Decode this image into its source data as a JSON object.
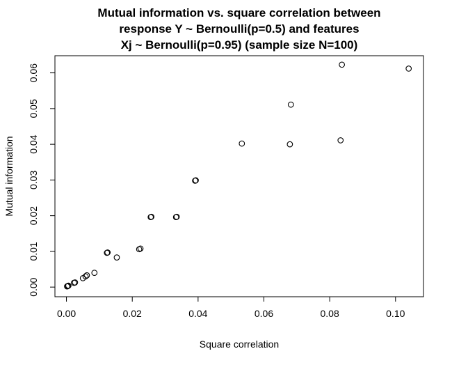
{
  "chart_data": {
    "type": "scatter",
    "title_lines": [
      "Mutual information vs. square correlation between",
      "response Y ~ Bernoulli(p=0.5) and features",
      "Xj ~ Bernoulli(p=0.95) (sample size N=100)"
    ],
    "xlabel": "Square correlation",
    "ylabel": "Mutual information",
    "xlim": [
      -0.0035,
      0.1085
    ],
    "ylim": [
      -0.0027,
      0.0648
    ],
    "x_ticks": [
      0.0,
      0.02,
      0.04,
      0.06,
      0.08,
      0.1
    ],
    "x_tick_labels": [
      "0.00",
      "0.02",
      "0.04",
      "0.06",
      "0.08",
      "0.10"
    ],
    "y_ticks": [
      0.0,
      0.01,
      0.02,
      0.03,
      0.04,
      0.05,
      0.06
    ],
    "y_tick_labels": [
      "0.00",
      "0.01",
      "0.02",
      "0.03",
      "0.04",
      "0.05",
      "0.06"
    ],
    "points": [
      {
        "x": 0.0002,
        "y": 0.0002
      },
      {
        "x": 0.0004,
        "y": 0.0003
      },
      {
        "x": 0.0006,
        "y": 0.0004
      },
      {
        "x": 0.0023,
        "y": 0.0012
      },
      {
        "x": 0.0026,
        "y": 0.0013
      },
      {
        "x": 0.005,
        "y": 0.0025
      },
      {
        "x": 0.0058,
        "y": 0.003
      },
      {
        "x": 0.0062,
        "y": 0.0033
      },
      {
        "x": 0.0085,
        "y": 0.004
      },
      {
        "x": 0.0123,
        "y": 0.0096
      },
      {
        "x": 0.0125,
        "y": 0.0097
      },
      {
        "x": 0.0153,
        "y": 0.0083
      },
      {
        "x": 0.0221,
        "y": 0.0106
      },
      {
        "x": 0.0225,
        "y": 0.0108
      },
      {
        "x": 0.0256,
        "y": 0.0196
      },
      {
        "x": 0.0258,
        "y": 0.0197
      },
      {
        "x": 0.0333,
        "y": 0.0196
      },
      {
        "x": 0.0335,
        "y": 0.0197
      },
      {
        "x": 0.0391,
        "y": 0.0298
      },
      {
        "x": 0.0393,
        "y": 0.0299
      },
      {
        "x": 0.0533,
        "y": 0.0402
      },
      {
        "x": 0.0679,
        "y": 0.04
      },
      {
        "x": 0.0682,
        "y": 0.0511
      },
      {
        "x": 0.0833,
        "y": 0.0411
      },
      {
        "x": 0.0837,
        "y": 0.0623
      },
      {
        "x": 0.104,
        "y": 0.0612
      }
    ]
  }
}
